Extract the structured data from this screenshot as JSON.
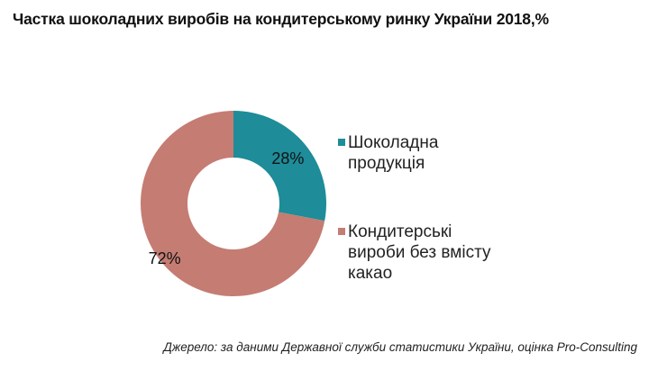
{
  "chart_data": {
    "type": "pie",
    "donut": true,
    "title": "Частка шоколадних виробів на кондитерському ринку України 2018,%",
    "categories": [
      "Шоколадна продукція",
      "Кондитерські вироби без вмісту какао"
    ],
    "values": [
      28,
      72
    ],
    "data_labels": [
      "28%",
      "72%"
    ],
    "colors": [
      "#1e8c99",
      "#c57c73"
    ],
    "legend_position": "right"
  },
  "legend_lines": [
    "Шоколадна\nпродукція",
    "Кондитерські\nвироби без вмісту\nкакао"
  ],
  "source": "Джерело: за даними Державної служби статистики України, оцінка Pro-Consulting"
}
